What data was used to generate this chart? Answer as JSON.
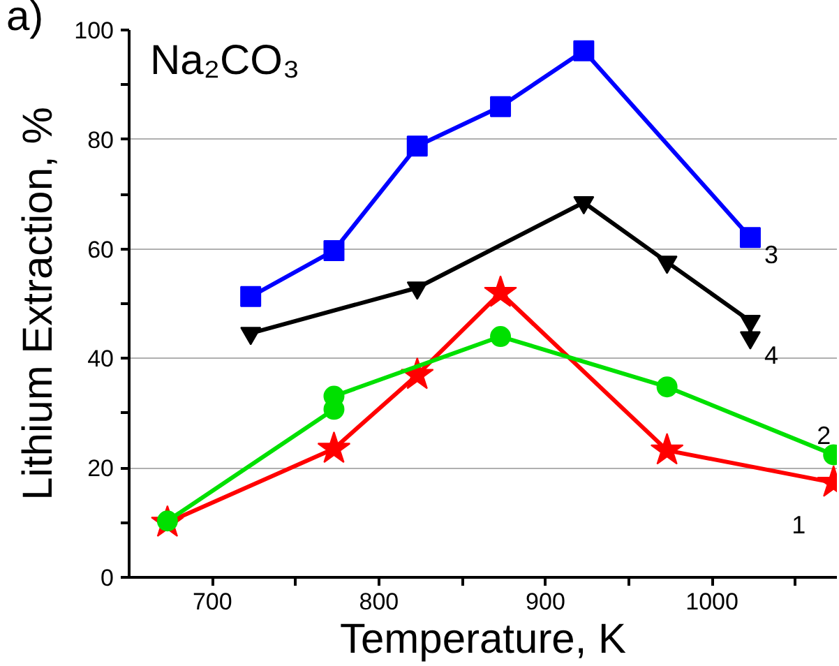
{
  "chart_data": {
    "type": "line",
    "xlabel": "Temperature, K",
    "ylabel": "Lithium Extraction, %",
    "annotations": [
      "a)",
      "Na₂CO₃"
    ],
    "xlim": [
      650,
      1075
    ],
    "ylim": [
      0,
      100
    ],
    "xticks": [
      700,
      {
        "value": 750,
        "label": null
      },
      800,
      {
        "value": 850,
        "label": null
      },
      900,
      {
        "value": 950,
        "label": null
      },
      1000,
      {
        "value": 1050,
        "label": null
      }
    ],
    "yticks": [
      0,
      {
        "value": 10,
        "label": null
      },
      20,
      {
        "value": 30,
        "label": null
      },
      40,
      {
        "value": 50,
        "label": null
      },
      60,
      {
        "value": 70,
        "label": null
      },
      80,
      {
        "value": 90,
        "label": null
      },
      100
    ],
    "grid": "y",
    "legend": false,
    "line_style": "solid",
    "series": [
      {
        "name": "1",
        "color": "#ff0000",
        "marker": "star",
        "x": [
          673,
          773,
          823,
          873,
          973,
          1073
        ],
        "values": [
          10,
          23.5,
          37,
          52,
          23.2,
          17.3
        ]
      },
      {
        "name": "2",
        "color": "#00e000",
        "marker": "circle",
        "x": [
          673,
          773,
          773,
          873,
          973,
          1073
        ],
        "values": [
          10.3,
          30.7,
          33.1,
          44,
          34.8,
          22.4
        ]
      },
      {
        "name": "3",
        "color": "#0000ff",
        "marker": "square",
        "x": [
          723,
          773,
          823,
          873,
          923,
          1023
        ],
        "values": [
          51.3,
          59.7,
          78.8,
          86,
          96.2,
          62.1
        ]
      },
      {
        "name": "4",
        "color": "#000000",
        "marker": "triangle",
        "x": [
          723,
          823,
          923,
          973,
          1023,
          1023
        ],
        "values": [
          44.6,
          52.9,
          68.5,
          57.6,
          46.8,
          43.8
        ]
      }
    ]
  }
}
